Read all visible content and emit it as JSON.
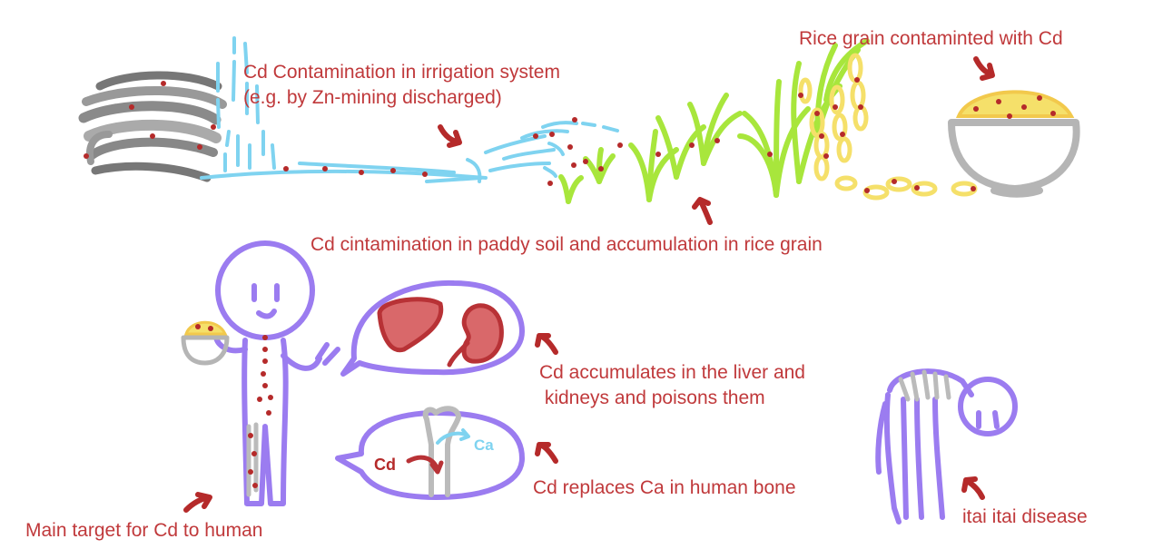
{
  "labels": {
    "irrigation_line1": "Cd Contamination in irrigation system",
    "irrigation_line2": "(e.g. by Zn-mining discharged)",
    "rice_grain": "Rice grain contaminted with Cd",
    "paddy_soil": "Cd cintamination in paddy soil and accumulation in rice grain",
    "liver_line1": "Cd accumulates in the liver and",
    "liver_line2": " kidneys and poisons them",
    "bone": "Cd replaces Ca in human bone",
    "main_target": "Main target for Cd to human",
    "itai": "itai itai disease",
    "bone_cd": "Cd",
    "bone_ca": "Ca"
  },
  "colors": {
    "label": "#c0393b",
    "water": "#7fd3f0",
    "plant": "#a8e63c",
    "grain": "#f5e06a",
    "grain_outline": "#f2c94c",
    "bowl": "#b5b5b5",
    "person": "#9b7cf0",
    "organ_fill": "#d9686a",
    "organ_outline": "#b83236",
    "cd_dot": "#b52a2a",
    "soil_gray": "#777777"
  }
}
